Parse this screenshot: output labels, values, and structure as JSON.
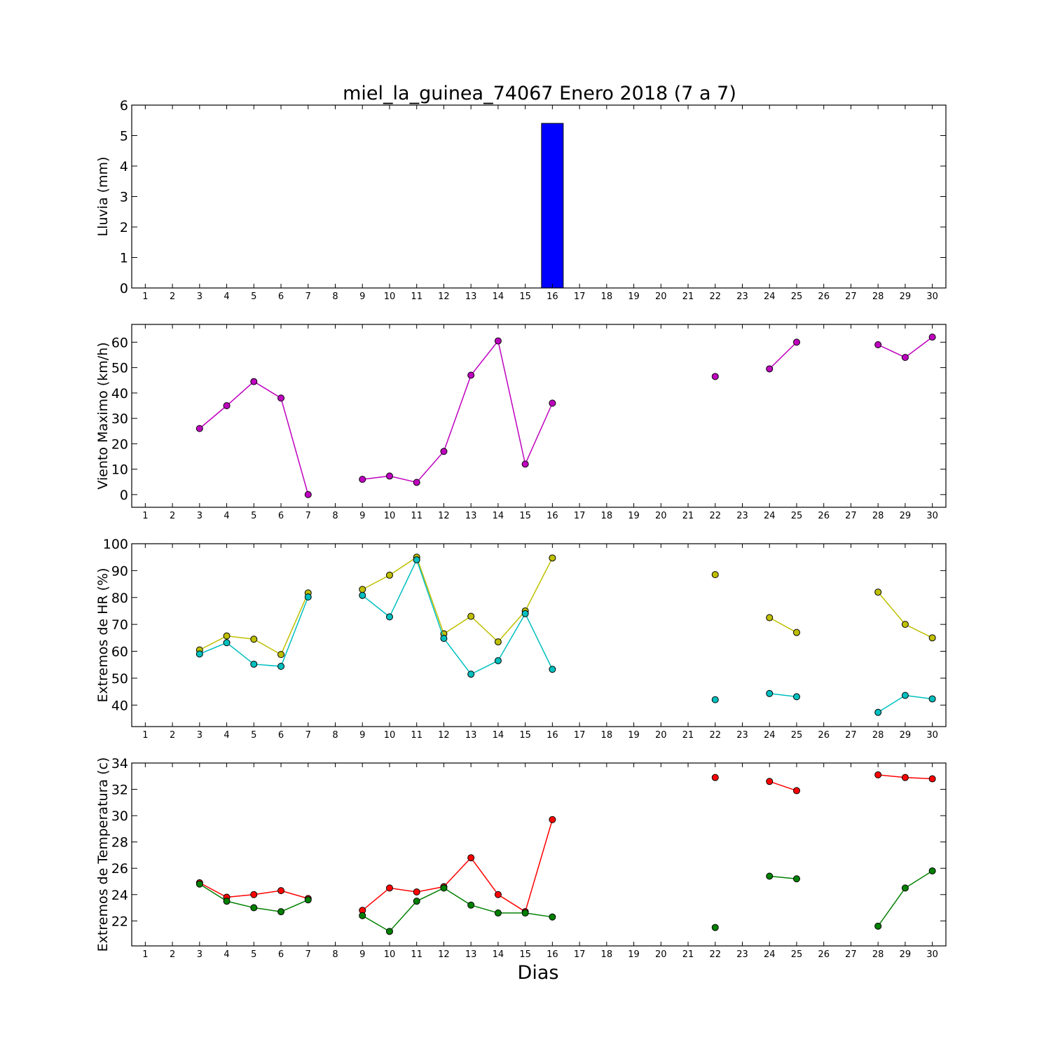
{
  "figure": {
    "title": "miel_la_guinea_74067 Enero 2018  (7 a 7)",
    "xlabel": "Dias"
  },
  "chart_data": [
    {
      "type": "bar",
      "ylabel": "Lluvia (mm)",
      "ylim": [
        0,
        6
      ],
      "yticks": [
        0,
        1,
        2,
        3,
        4,
        5,
        6
      ],
      "xlim": [
        0.5,
        30.5
      ],
      "xticks": [
        1,
        2,
        3,
        4,
        5,
        6,
        7,
        8,
        9,
        10,
        11,
        12,
        13,
        14,
        15,
        16,
        17,
        18,
        19,
        20,
        21,
        22,
        23,
        24,
        25,
        26,
        27,
        28,
        29,
        30
      ],
      "grid": false,
      "categories": [
        1,
        2,
        3,
        4,
        5,
        6,
        7,
        8,
        9,
        10,
        11,
        12,
        13,
        14,
        15,
        16,
        17,
        18,
        19,
        20,
        21,
        22,
        23,
        24,
        25,
        26,
        27,
        28,
        29,
        30
      ],
      "series": [
        {
          "color": "#0000ff",
          "values": [
            null,
            null,
            0,
            0,
            0,
            0,
            0,
            null,
            0,
            0,
            0,
            0,
            0,
            0,
            0,
            5.4,
            null,
            null,
            null,
            null,
            null,
            0,
            null,
            0,
            0,
            null,
            null,
            0,
            0,
            0
          ]
        }
      ]
    },
    {
      "type": "line",
      "ylabel": "Viento Maximo (km/h)",
      "ylim": [
        -5,
        67
      ],
      "yticks": [
        0,
        10,
        20,
        30,
        40,
        50,
        60
      ],
      "xlim": [
        0.5,
        30.5
      ],
      "xticks": [
        1,
        2,
        3,
        4,
        5,
        6,
        7,
        8,
        9,
        10,
        11,
        12,
        13,
        14,
        15,
        16,
        17,
        18,
        19,
        20,
        21,
        22,
        23,
        24,
        25,
        26,
        27,
        28,
        29,
        30
      ],
      "grid": false,
      "x": [
        1,
        2,
        3,
        4,
        5,
        6,
        7,
        8,
        9,
        10,
        11,
        12,
        13,
        14,
        15,
        16,
        17,
        18,
        19,
        20,
        21,
        22,
        23,
        24,
        25,
        26,
        27,
        28,
        29,
        30
      ],
      "series": [
        {
          "color": "#bf00bf",
          "values": [
            null,
            null,
            26,
            35,
            44.5,
            38,
            0,
            null,
            6,
            7.3,
            4.8,
            17,
            47,
            60.5,
            12,
            36,
            null,
            null,
            null,
            null,
            null,
            46.5,
            null,
            49.5,
            60,
            null,
            null,
            59,
            54,
            62
          ]
        }
      ]
    },
    {
      "type": "line",
      "ylabel": "Extremos de HR (%)",
      "ylim": [
        32,
        100
      ],
      "yticks": [
        40,
        50,
        60,
        70,
        80,
        90,
        100
      ],
      "xlim": [
        0.5,
        30.5
      ],
      "xticks": [
        1,
        2,
        3,
        4,
        5,
        6,
        7,
        8,
        9,
        10,
        11,
        12,
        13,
        14,
        15,
        16,
        17,
        18,
        19,
        20,
        21,
        22,
        23,
        24,
        25,
        26,
        27,
        28,
        29,
        30
      ],
      "grid": false,
      "x": [
        1,
        2,
        3,
        4,
        5,
        6,
        7,
        8,
        9,
        10,
        11,
        12,
        13,
        14,
        15,
        16,
        17,
        18,
        19,
        20,
        21,
        22,
        23,
        24,
        25,
        26,
        27,
        28,
        29,
        30
      ],
      "series": [
        {
          "color": "#bfbf00",
          "values": [
            null,
            null,
            60.5,
            65.7,
            64.5,
            58.8,
            81.7,
            null,
            83,
            88.3,
            95,
            66.5,
            73,
            63.5,
            75,
            94.7,
            null,
            null,
            null,
            null,
            null,
            88.5,
            null,
            72.5,
            67,
            null,
            null,
            82,
            70,
            65
          ]
        },
        {
          "color": "#00bfbf",
          "values": [
            null,
            null,
            59,
            63.2,
            55.2,
            54.4,
            80.2,
            null,
            80.8,
            72.8,
            94,
            64.8,
            51.5,
            56.5,
            74,
            53.3,
            null,
            null,
            null,
            null,
            null,
            42,
            null,
            44.3,
            43.1,
            null,
            null,
            37.3,
            43.6,
            42.3
          ]
        }
      ]
    },
    {
      "type": "line",
      "ylabel": "Extremos de Temperatura (c)",
      "ylim": [
        20.1,
        34
      ],
      "yticks": [
        22,
        24,
        26,
        28,
        30,
        32,
        34
      ],
      "xlim": [
        0.5,
        30.5
      ],
      "xticks": [
        1,
        2,
        3,
        4,
        5,
        6,
        7,
        8,
        9,
        10,
        11,
        12,
        13,
        14,
        15,
        16,
        17,
        18,
        19,
        20,
        21,
        22,
        23,
        24,
        25,
        26,
        27,
        28,
        29,
        30
      ],
      "grid": false,
      "x": [
        1,
        2,
        3,
        4,
        5,
        6,
        7,
        8,
        9,
        10,
        11,
        12,
        13,
        14,
        15,
        16,
        17,
        18,
        19,
        20,
        21,
        22,
        23,
        24,
        25,
        26,
        27,
        28,
        29,
        30
      ],
      "series": [
        {
          "color": "#ff0000",
          "values": [
            null,
            null,
            24.9,
            23.8,
            24,
            24.3,
            23.7,
            null,
            22.8,
            24.5,
            24.2,
            24.6,
            26.8,
            24,
            22.7,
            29.7,
            null,
            null,
            null,
            null,
            null,
            32.9,
            null,
            32.6,
            31.9,
            null,
            null,
            33.1,
            32.9,
            32.8
          ]
        },
        {
          "color": "#008000",
          "values": [
            null,
            null,
            24.8,
            23.5,
            23,
            22.7,
            23.6,
            null,
            22.4,
            21.2,
            23.5,
            24.5,
            23.2,
            22.6,
            22.6,
            22.3,
            null,
            null,
            null,
            null,
            null,
            21.5,
            null,
            25.4,
            25.2,
            null,
            null,
            21.6,
            24.5,
            25.8
          ]
        }
      ]
    }
  ]
}
